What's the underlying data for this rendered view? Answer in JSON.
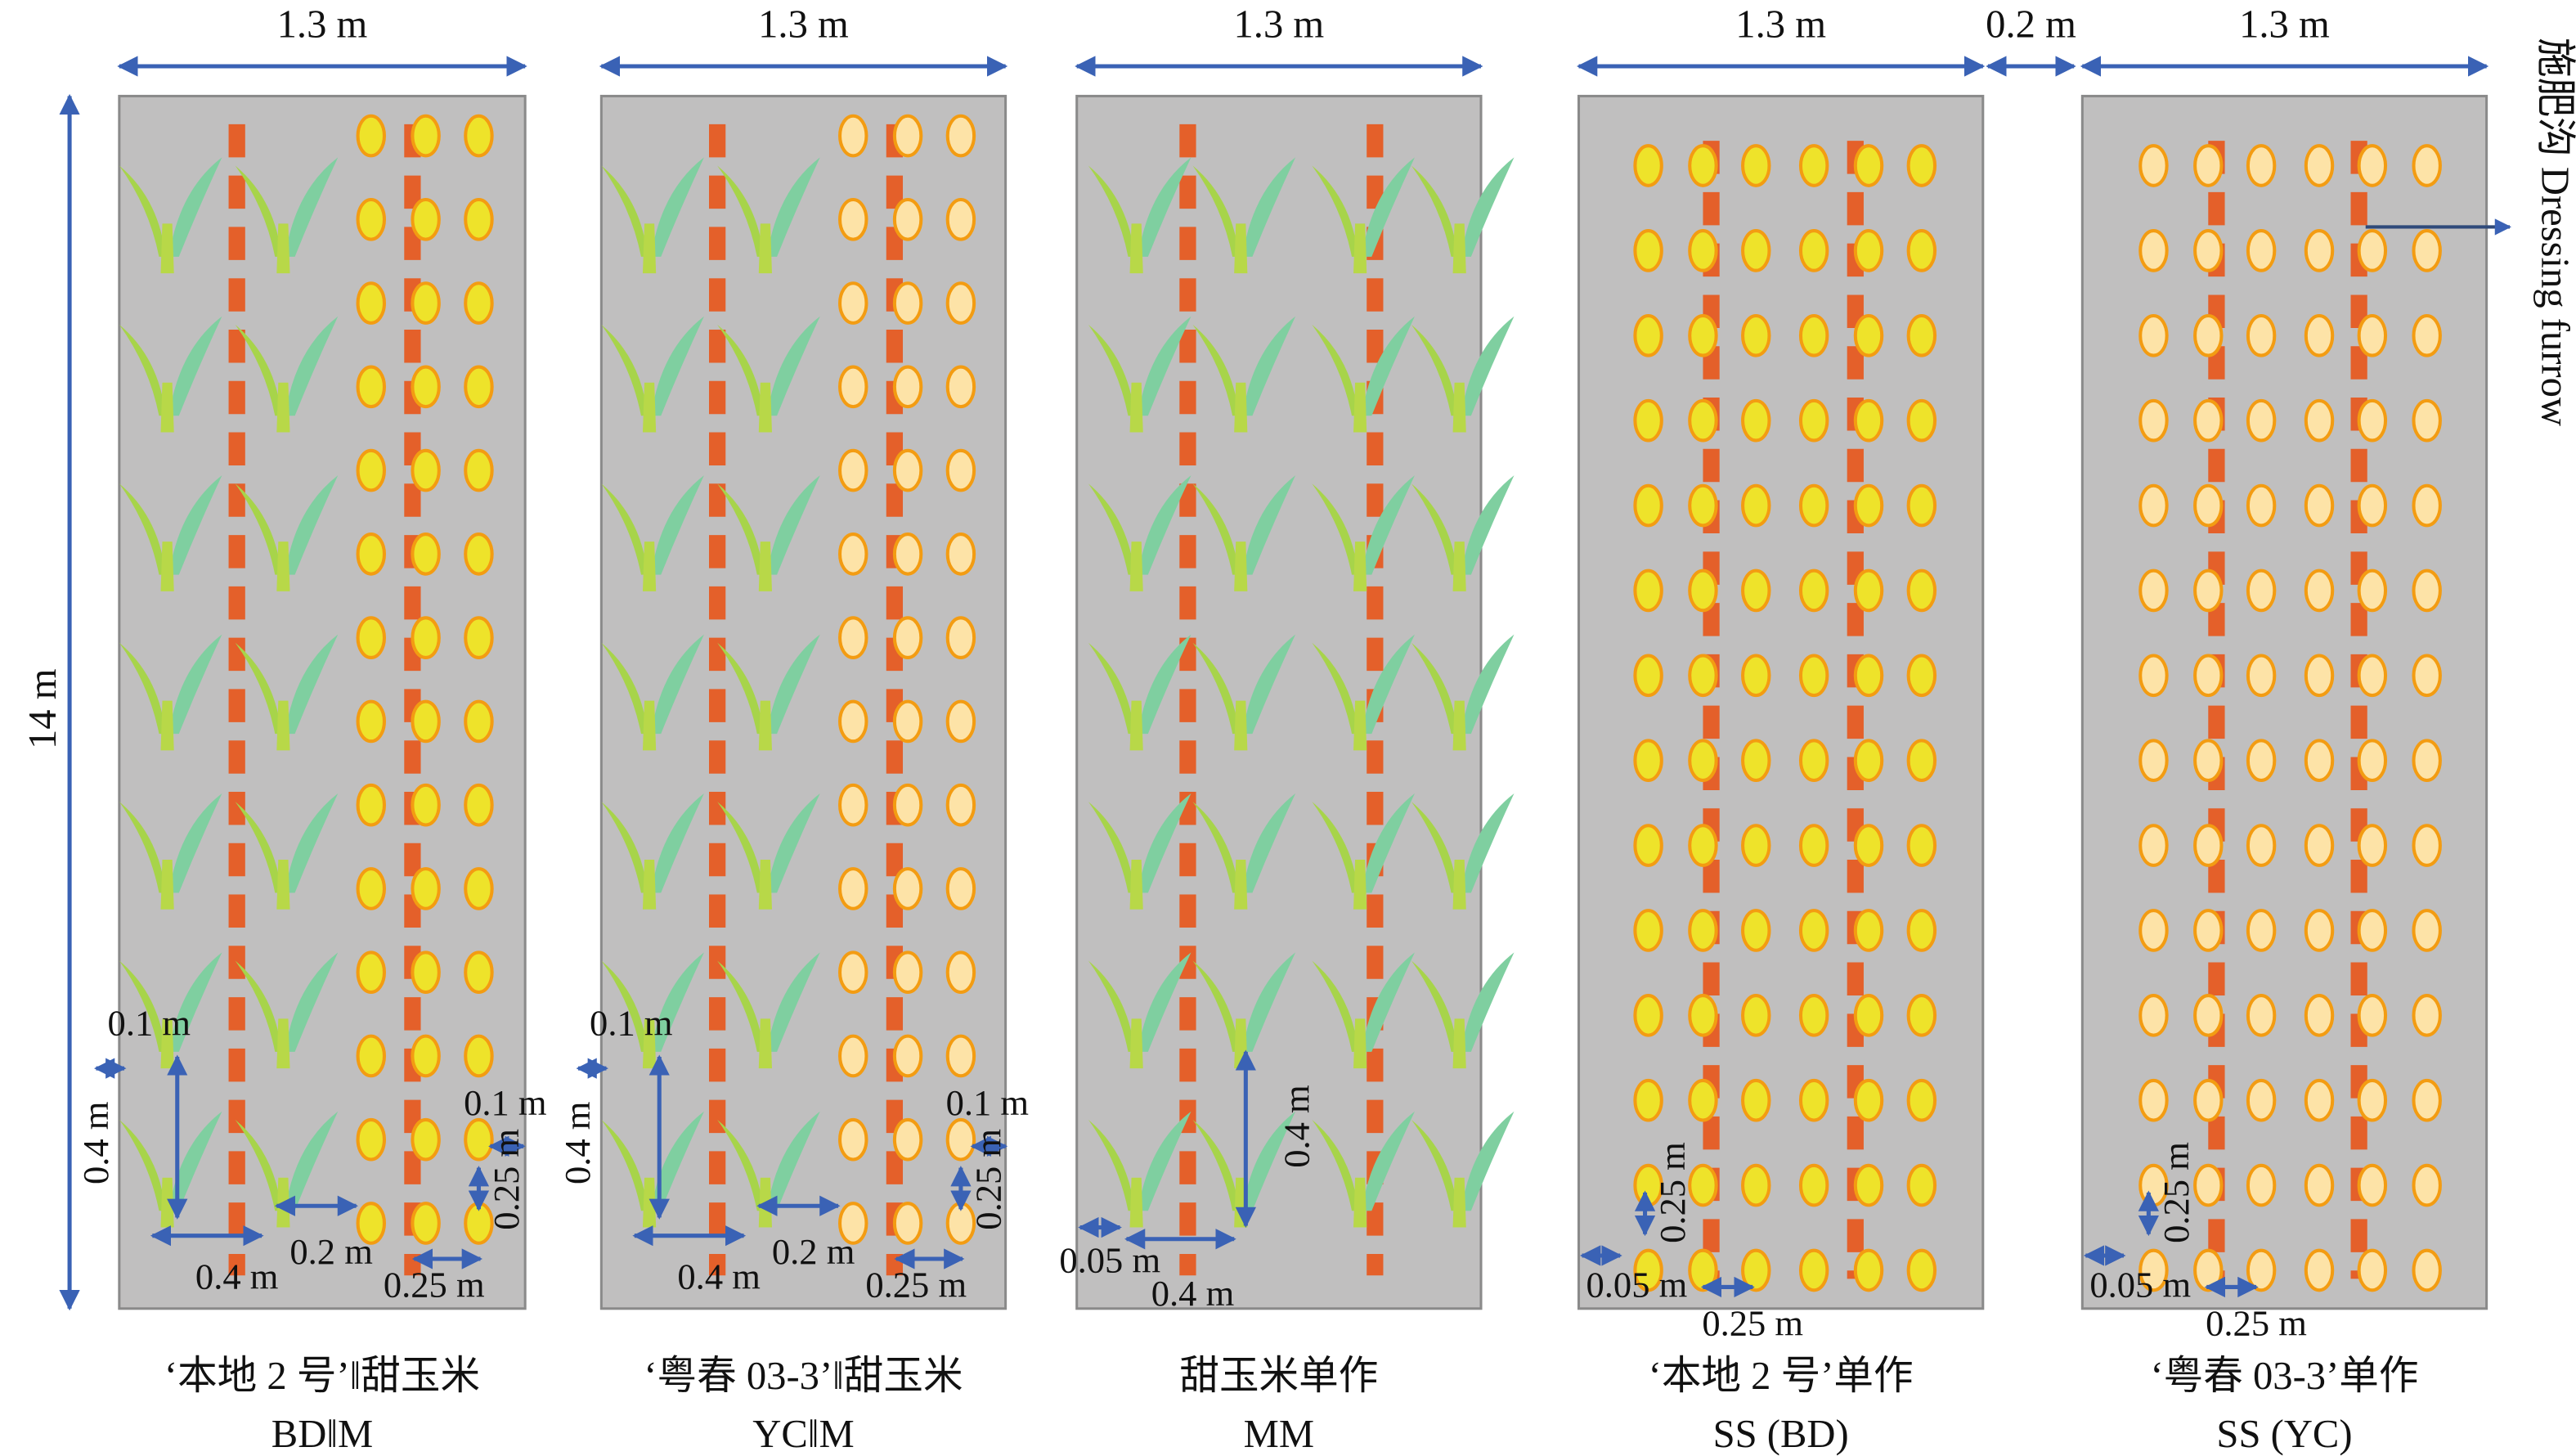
{
  "top_labels": [
    "1.3 m",
    "1.3 m",
    "1.3 m",
    "1.3 m",
    "0.2 m",
    "1.3 m"
  ],
  "length_label": "14 m",
  "furrow_label": "施肥沟 Dressing furrow",
  "panels": [
    {
      "caption": "‘本地 2 号’‖甜玉米",
      "code": "BD‖M",
      "dims": [
        "0.1 m",
        "0.4 m",
        "0.4 m",
        "0.2 m",
        "0.1 m",
        "0.25 m",
        "0.25 m"
      ]
    },
    {
      "caption": "‘粤春 03-3’‖甜玉米",
      "code": "YC‖M",
      "dims": [
        "0.1 m",
        "0.4 m",
        "0.4 m",
        "0.2 m",
        "0.1 m",
        "0.25 m",
        "0.25 m"
      ]
    },
    {
      "caption": "甜玉米单作",
      "code": "MM",
      "dims": [
        "0.4 m",
        "0.05 m",
        "0.4 m"
      ]
    },
    {
      "caption": "‘本地 2 号’单作",
      "code": "SS (BD)",
      "dims": [
        "0.25 m",
        "0.05 m",
        "0.25 m"
      ]
    },
    {
      "caption": "‘粤春 03-3’单作",
      "code": "SS (YC)",
      "dims": [
        "0.25 m",
        "0.05 m",
        "0.25 m"
      ]
    }
  ]
}
